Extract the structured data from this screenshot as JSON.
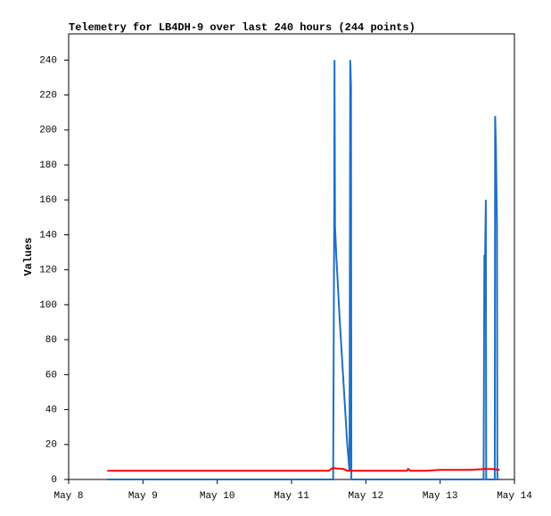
{
  "chart_data": {
    "type": "line",
    "title": "Telemetry for LB4DH-9 over last 240 hours (244 points)",
    "y_label": "Values",
    "xlim": [
      8,
      14
    ],
    "xticks": [
      {
        "value": 8,
        "label": "May 8"
      },
      {
        "value": 9,
        "label": "May 9"
      },
      {
        "value": 10,
        "label": "May 10"
      },
      {
        "value": 11,
        "label": "May 11"
      },
      {
        "value": 12,
        "label": "May 12"
      },
      {
        "value": 13,
        "label": "May 13"
      },
      {
        "value": 14,
        "label": "May 14"
      }
    ],
    "ylim": [
      0,
      255
    ],
    "yticks": [
      0,
      20,
      40,
      60,
      80,
      100,
      120,
      140,
      160,
      180,
      200,
      220,
      240
    ],
    "series": [
      {
        "color": "#1f6fc5",
        "x": [
          8.52,
          11.56,
          11.575,
          11.578,
          11.585,
          11.6,
          11.65,
          11.7,
          11.75,
          11.78,
          11.79,
          11.8,
          11.805,
          13.585,
          13.59,
          13.595,
          13.605,
          13.615,
          13.62,
          13.735,
          13.74,
          13.75,
          13.765,
          13.77,
          13.8
        ],
        "values": [
          0,
          0,
          160,
          240,
          145,
          130,
          90,
          55,
          20,
          5,
          240,
          225,
          0,
          0,
          65,
          128,
          128,
          160,
          0,
          0,
          208,
          192,
          145,
          0,
          0
        ]
      },
      {
        "color": "#ff0000",
        "x": [
          8.52,
          11.5,
          11.55,
          11.7,
          11.75,
          12.55,
          12.57,
          12.6,
          12.8,
          13.0,
          13.2,
          13.4,
          13.6,
          13.7,
          13.8
        ],
        "values": [
          5,
          5,
          6.5,
          6,
          5,
          5,
          6,
          5,
          5,
          5.5,
          5.5,
          5.5,
          6,
          6,
          5.5
        ]
      }
    ]
  }
}
